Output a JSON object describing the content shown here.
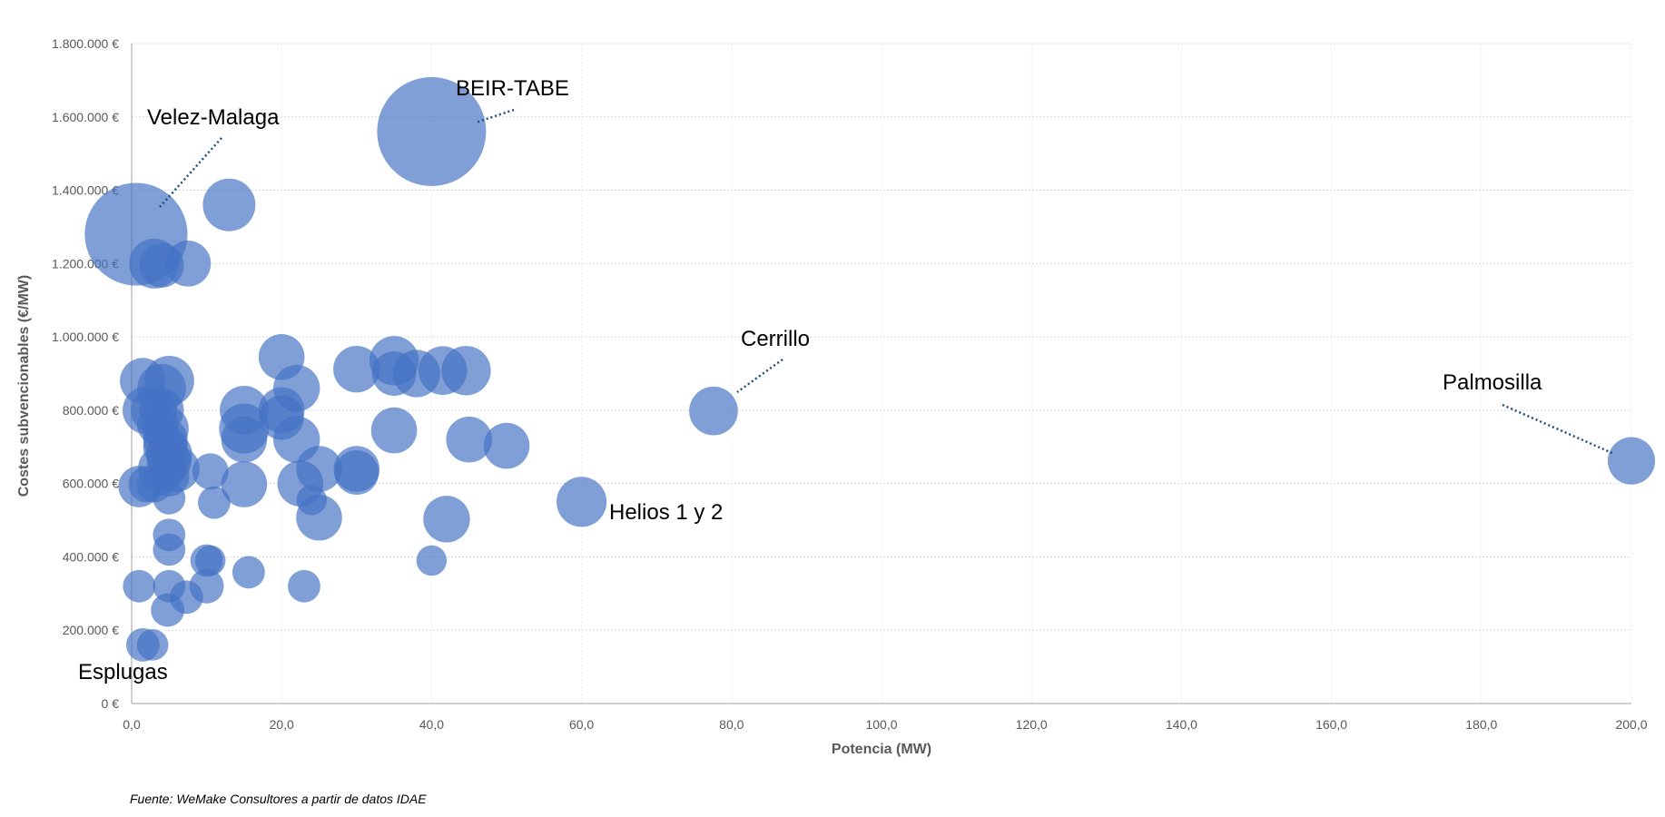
{
  "chart_data": {
    "type": "scatter",
    "xlabel": "Potencia (MW)",
    "ylabel": "Costes subvencionables (€/MW)",
    "xlim": [
      0,
      200
    ],
    "ylim": [
      0,
      1800000
    ],
    "x_ticks": [
      "0,0",
      "20,0",
      "40,0",
      "60,0",
      "80,0",
      "100,0",
      "120,0",
      "140,0",
      "160,0",
      "180,0",
      "200,0"
    ],
    "y_ticks": [
      "0 €",
      "200.000 €",
      "400.000 €",
      "600.000 €",
      "800.000 €",
      "1.000.000 €",
      "1.200.000 €",
      "1.400.000 €",
      "1.600.000 €",
      "1.800.000 €"
    ],
    "grid": true,
    "bubble_color": "#4472C4",
    "leader_color": "#1F4E79",
    "source": "Fuente: WeMake Consultores a partir de datos IDAE",
    "annotations": [
      {
        "text": "Velez-Malaga",
        "x": 0.6,
        "y": 1280000
      },
      {
        "text": "BEIR-TABE",
        "x": 40,
        "y": 1560000
      },
      {
        "text": "Cerrillo",
        "x": 77.6,
        "y": 798000
      },
      {
        "text": "Palmosilla",
        "x": 200,
        "y": 662000
      },
      {
        "text": "Helios 1 y 2",
        "x": 60,
        "y": 550000
      },
      {
        "text": "Esplugas",
        "x": 1.5,
        "y": 160000
      }
    ],
    "points": [
      {
        "x": 0.6,
        "y": 1280000,
        "size": 1600
      },
      {
        "x": 40,
        "y": 1560000,
        "size": 1800
      },
      {
        "x": 13,
        "y": 1360000,
        "size": 420
      },
      {
        "x": 3,
        "y": 1200000,
        "size": 380
      },
      {
        "x": 4,
        "y": 1195000,
        "size": 300
      },
      {
        "x": 7.5,
        "y": 1200000,
        "size": 320
      },
      {
        "x": 20,
        "y": 945000,
        "size": 320
      },
      {
        "x": 30,
        "y": 912000,
        "size": 330
      },
      {
        "x": 35,
        "y": 935000,
        "size": 370
      },
      {
        "x": 35,
        "y": 900000,
        "size": 300
      },
      {
        "x": 38,
        "y": 900000,
        "size": 340
      },
      {
        "x": 41.5,
        "y": 908000,
        "size": 360
      },
      {
        "x": 44.6,
        "y": 908000,
        "size": 370
      },
      {
        "x": 22,
        "y": 860000,
        "size": 330
      },
      {
        "x": 1.5,
        "y": 880000,
        "size": 320
      },
      {
        "x": 2,
        "y": 800000,
        "size": 350
      },
      {
        "x": 3,
        "y": 800000,
        "size": 330
      },
      {
        "x": 4,
        "y": 860000,
        "size": 360
      },
      {
        "x": 5,
        "y": 880000,
        "size": 380
      },
      {
        "x": 4,
        "y": 800000,
        "size": 300
      },
      {
        "x": 3.5,
        "y": 760000,
        "size": 260
      },
      {
        "x": 4.5,
        "y": 750000,
        "size": 330
      },
      {
        "x": 4.5,
        "y": 720000,
        "size": 300
      },
      {
        "x": 4.5,
        "y": 700000,
        "size": 300
      },
      {
        "x": 5,
        "y": 680000,
        "size": 320
      },
      {
        "x": 5,
        "y": 660000,
        "size": 300
      },
      {
        "x": 4,
        "y": 640000,
        "size": 340
      },
      {
        "x": 6,
        "y": 640000,
        "size": 320
      },
      {
        "x": 5,
        "y": 620000,
        "size": 250
      },
      {
        "x": 15,
        "y": 800000,
        "size": 360
      },
      {
        "x": 15,
        "y": 750000,
        "size": 380
      },
      {
        "x": 15,
        "y": 720000,
        "size": 320
      },
      {
        "x": 20,
        "y": 800000,
        "size": 320
      },
      {
        "x": 20,
        "y": 780000,
        "size": 300
      },
      {
        "x": 22,
        "y": 720000,
        "size": 330
      },
      {
        "x": 35,
        "y": 745000,
        "size": 320
      },
      {
        "x": 45,
        "y": 720000,
        "size": 320
      },
      {
        "x": 50,
        "y": 703000,
        "size": 320
      },
      {
        "x": 77.6,
        "y": 798000,
        "size": 360
      },
      {
        "x": 200,
        "y": 662000,
        "size": 340
      },
      {
        "x": 60,
        "y": 550000,
        "size": 380
      },
      {
        "x": 25,
        "y": 640000,
        "size": 320
      },
      {
        "x": 30,
        "y": 640000,
        "size": 320
      },
      {
        "x": 30,
        "y": 630000,
        "size": 300
      },
      {
        "x": 22.5,
        "y": 600000,
        "size": 320
      },
      {
        "x": 15,
        "y": 598000,
        "size": 320
      },
      {
        "x": 25,
        "y": 507000,
        "size": 320
      },
      {
        "x": 42,
        "y": 503000,
        "size": 330
      },
      {
        "x": 1,
        "y": 592000,
        "size": 260
      },
      {
        "x": 2,
        "y": 598000,
        "size": 200
      },
      {
        "x": 3,
        "y": 595000,
        "size": 180
      },
      {
        "x": 10.5,
        "y": 633000,
        "size": 200
      },
      {
        "x": 11,
        "y": 548000,
        "size": 160
      },
      {
        "x": 24,
        "y": 555000,
        "size": 140
      },
      {
        "x": 5,
        "y": 560000,
        "size": 160
      },
      {
        "x": 5,
        "y": 460000,
        "size": 160
      },
      {
        "x": 5,
        "y": 420000,
        "size": 160
      },
      {
        "x": 10,
        "y": 390000,
        "size": 160
      },
      {
        "x": 10.5,
        "y": 390000,
        "size": 140
      },
      {
        "x": 40,
        "y": 390000,
        "size": 140
      },
      {
        "x": 1,
        "y": 320000,
        "size": 160
      },
      {
        "x": 5,
        "y": 320000,
        "size": 160
      },
      {
        "x": 10,
        "y": 320000,
        "size": 180
      },
      {
        "x": 15.6,
        "y": 358000,
        "size": 160
      },
      {
        "x": 23,
        "y": 320000,
        "size": 160
      },
      {
        "x": 7.3,
        "y": 290000,
        "size": 170
      },
      {
        "x": 4.8,
        "y": 255000,
        "size": 170
      },
      {
        "x": 1.5,
        "y": 160000,
        "size": 170
      },
      {
        "x": 2.8,
        "y": 160000,
        "size": 150
      }
    ]
  }
}
